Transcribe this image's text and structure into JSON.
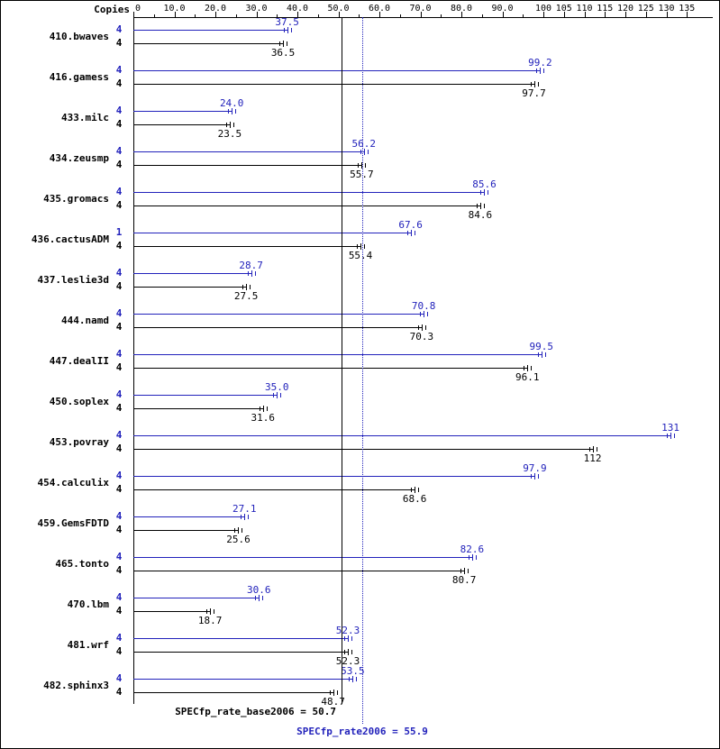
{
  "chart_data": {
    "type": "bar",
    "orientation": "horizontal",
    "axis": {
      "label": "Copies",
      "range": [
        0,
        141
      ],
      "ticks": [
        {
          "v": 0,
          "label": "0"
        },
        {
          "v": 10,
          "label": "10.0"
        },
        {
          "v": 20,
          "label": "20.0"
        },
        {
          "v": 30,
          "label": "30.0"
        },
        {
          "v": 40,
          "label": "40.0"
        },
        {
          "v": 50,
          "label": "50.0"
        },
        {
          "v": 60,
          "label": "60.0"
        },
        {
          "v": 70,
          "label": "70.0"
        },
        {
          "v": 80,
          "label": "80.0"
        },
        {
          "v": 90,
          "label": "90.0"
        },
        {
          "v": 100,
          "label": "100"
        },
        {
          "v": 105,
          "label": "105"
        },
        {
          "v": 110,
          "label": "110"
        },
        {
          "v": 115,
          "label": "115"
        },
        {
          "v": 120,
          "label": "120"
        },
        {
          "v": 125,
          "label": "125"
        },
        {
          "v": 130,
          "label": "130"
        },
        {
          "v": 135,
          "label": "135"
        }
      ]
    },
    "series": [
      {
        "name": "peak",
        "color": "#2222bb"
      },
      {
        "name": "base",
        "color": "#000000"
      }
    ],
    "colors": {
      "peak": "#2222bb",
      "base": "#000000"
    },
    "benchmarks": [
      {
        "name": "410.bwaves",
        "peak_copies": "4",
        "base_copies": "4",
        "peak": 37.5,
        "base": 36.5,
        "peak_label": "37.5",
        "base_label": "36.5"
      },
      {
        "name": "416.gamess",
        "peak_copies": "4",
        "base_copies": "4",
        "peak": 99.2,
        "base": 97.7,
        "peak_label": "99.2",
        "base_label": "97.7"
      },
      {
        "name": "433.milc",
        "peak_copies": "4",
        "base_copies": "4",
        "peak": 24.0,
        "base": 23.5,
        "peak_label": "24.0",
        "base_label": "23.5"
      },
      {
        "name": "434.zeusmp",
        "peak_copies": "4",
        "base_copies": "4",
        "peak": 56.2,
        "base": 55.7,
        "peak_label": "56.2",
        "base_label": "55.7"
      },
      {
        "name": "435.gromacs",
        "peak_copies": "4",
        "base_copies": "4",
        "peak": 85.6,
        "base": 84.6,
        "peak_label": "85.6",
        "base_label": "84.6"
      },
      {
        "name": "436.cactusADM",
        "peak_copies": "1",
        "base_copies": "4",
        "peak": 67.6,
        "base": 55.4,
        "peak_label": "67.6",
        "base_label": "55.4"
      },
      {
        "name": "437.leslie3d",
        "peak_copies": "4",
        "base_copies": "4",
        "peak": 28.7,
        "base": 27.5,
        "peak_label": "28.7",
        "base_label": "27.5"
      },
      {
        "name": "444.namd",
        "peak_copies": "4",
        "base_copies": "4",
        "peak": 70.8,
        "base": 70.3,
        "peak_label": "70.8",
        "base_label": "70.3"
      },
      {
        "name": "447.dealII",
        "peak_copies": "4",
        "base_copies": "4",
        "peak": 99.5,
        "base": 96.1,
        "peak_label": "99.5",
        "base_label": "96.1"
      },
      {
        "name": "450.soplex",
        "peak_copies": "4",
        "base_copies": "4",
        "peak": 35.0,
        "base": 31.6,
        "peak_label": "35.0",
        "base_label": "31.6"
      },
      {
        "name": "453.povray",
        "peak_copies": "4",
        "base_copies": "4",
        "peak": 131,
        "base": 112,
        "peak_label": "131",
        "base_label": "112"
      },
      {
        "name": "454.calculix",
        "peak_copies": "4",
        "base_copies": "4",
        "peak": 97.9,
        "base": 68.6,
        "peak_label": "97.9",
        "base_label": "68.6"
      },
      {
        "name": "459.GemsFDTD",
        "peak_copies": "4",
        "base_copies": "4",
        "peak": 27.1,
        "base": 25.6,
        "peak_label": "27.1",
        "base_label": "25.6"
      },
      {
        "name": "465.tonto",
        "peak_copies": "4",
        "base_copies": "4",
        "peak": 82.6,
        "base": 80.7,
        "peak_label": "82.6",
        "base_label": "80.7"
      },
      {
        "name": "470.lbm",
        "peak_copies": "4",
        "base_copies": "4",
        "peak": 30.6,
        "base": 18.7,
        "peak_label": "30.6",
        "base_label": "18.7"
      },
      {
        "name": "481.wrf",
        "peak_copies": "4",
        "base_copies": "4",
        "peak": 52.3,
        "base": 52.3,
        "peak_label": "52.3",
        "base_label": "52.3"
      },
      {
        "name": "482.sphinx3",
        "peak_copies": "4",
        "base_copies": "4",
        "peak": 53.5,
        "base": 48.7,
        "peak_label": "53.5",
        "base_label": "48.7"
      }
    ],
    "reference_lines": {
      "base_median": {
        "value": 50.7,
        "style": "solid",
        "color": "#000000",
        "label": "SPECfp_rate_base2006 = 50.7"
      },
      "peak_median": {
        "value": 55.9,
        "style": "dotted",
        "color": "#2222bb",
        "label": "SPECfp_rate2006 = 55.9"
      }
    }
  }
}
